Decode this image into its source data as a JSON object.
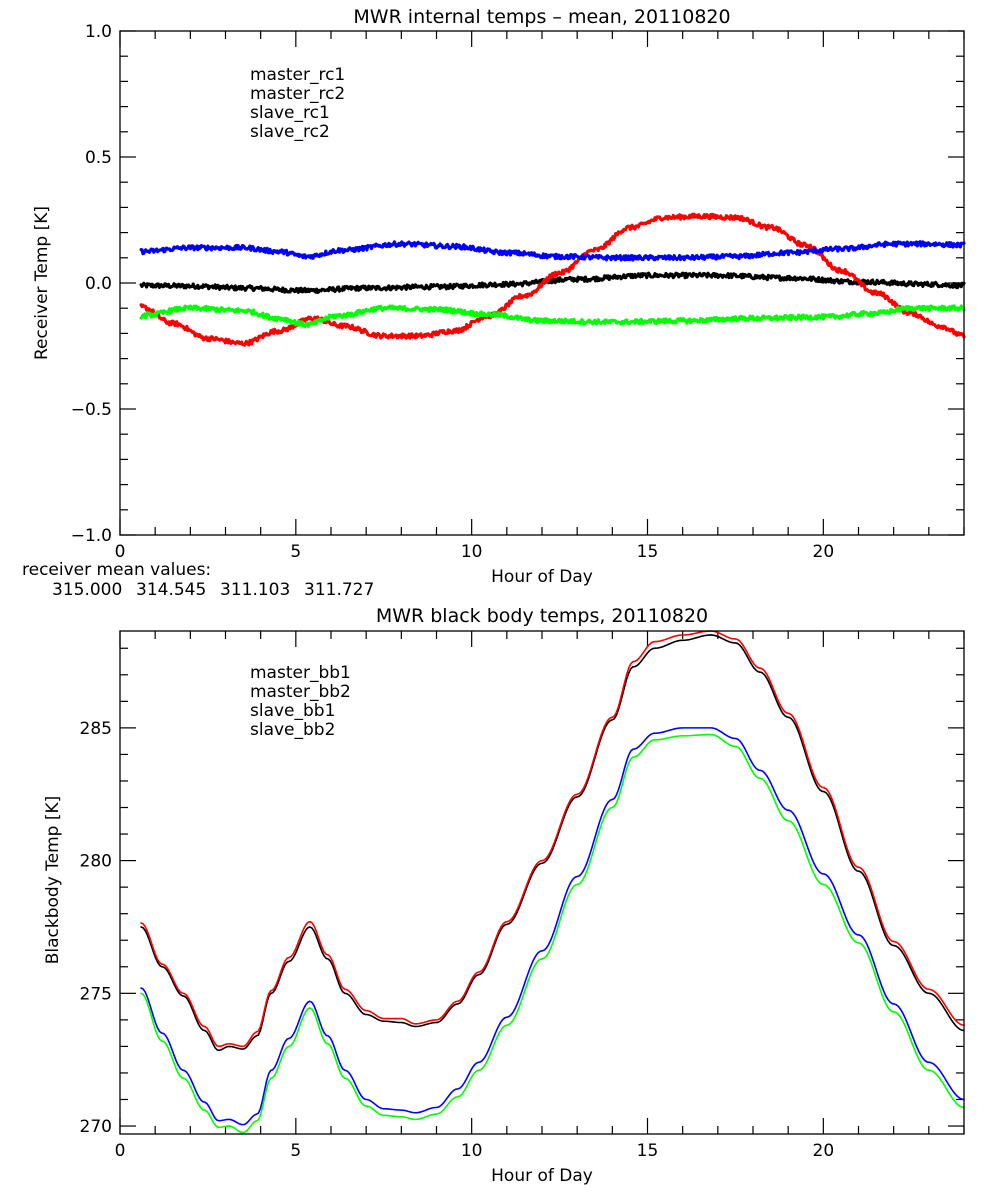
{
  "chart_data": [
    {
      "type": "line",
      "title": "MWR internal temps – mean, 20110820",
      "xlabel": "Hour of Day",
      "ylabel": "Receiver Temp [K]",
      "xlim": [
        0,
        24
      ],
      "ylim": [
        -1.0,
        1.0
      ],
      "xticks": [
        0,
        5,
        10,
        15,
        20
      ],
      "xtick_labels": [
        "0",
        "5",
        "10",
        "15",
        "20"
      ],
      "x_minor_step": 1,
      "yticks": [
        -1.0,
        -0.5,
        0.0,
        0.5,
        1.0
      ],
      "ytick_labels": [
        "−1.0",
        "−0.5",
        "0.0",
        "0.5",
        "1.0"
      ],
      "y_minor_step": 0.1,
      "grid": false,
      "legend_position": "top-left",
      "noisy": true,
      "series": [
        {
          "name": "master_rc1",
          "color": "#000000",
          "x": [
            0.6,
            2,
            3.5,
            5.3,
            7,
            9,
            11,
            13,
            15,
            17,
            19,
            21,
            23,
            24
          ],
          "y": [
            -0.01,
            -0.012,
            -0.02,
            -0.03,
            -0.02,
            -0.015,
            -0.005,
            0.015,
            0.03,
            0.03,
            0.02,
            0.005,
            -0.005,
            -0.01
          ]
        },
        {
          "name": "master_rc2",
          "color": "#ff0000",
          "x": [
            0.6,
            1.5,
            2.5,
            3.5,
            4.5,
            5.5,
            6.3,
            7.5,
            8.5,
            9.5,
            10.5,
            11.5,
            12.5,
            13.5,
            14.5,
            15.5,
            16.5,
            17.5,
            18.5,
            19.5,
            20.5,
            21.5,
            22.5,
            23.3,
            24
          ],
          "y": [
            -0.095,
            -0.16,
            -0.22,
            -0.24,
            -0.19,
            -0.14,
            -0.17,
            -0.21,
            -0.21,
            -0.19,
            -0.13,
            -0.05,
            0.04,
            0.13,
            0.22,
            0.26,
            0.265,
            0.26,
            0.22,
            0.15,
            0.05,
            -0.04,
            -0.12,
            -0.17,
            -0.21
          ]
        },
        {
          "name": "slave_rc1",
          "color": "#0000ff",
          "x": [
            0.6,
            2,
            3.5,
            4.5,
            5.3,
            6.3,
            8,
            9.5,
            11,
            12.5,
            14,
            16,
            17.5,
            19,
            20.5,
            22,
            23,
            24
          ],
          "y": [
            0.125,
            0.14,
            0.14,
            0.125,
            0.105,
            0.13,
            0.155,
            0.145,
            0.12,
            0.105,
            0.1,
            0.1,
            0.105,
            0.12,
            0.135,
            0.155,
            0.155,
            0.15
          ]
        },
        {
          "name": "slave_rc2",
          "color": "#00ff00",
          "x": [
            0.6,
            2,
            3.5,
            4.5,
            5.3,
            6.2,
            7.5,
            9,
            10.5,
            12,
            14,
            16,
            18,
            20,
            21.5,
            22.5,
            24
          ],
          "y": [
            -0.13,
            -0.1,
            -0.11,
            -0.14,
            -0.165,
            -0.13,
            -0.1,
            -0.105,
            -0.125,
            -0.15,
            -0.155,
            -0.15,
            -0.14,
            -0.135,
            -0.12,
            -0.1,
            -0.1
          ]
        }
      ]
    },
    {
      "type": "line",
      "title": "MWR black body temps, 20110820",
      "xlabel": "Hour of Day",
      "ylabel": "Blackbody Temp [K]",
      "xlim": [
        0,
        24
      ],
      "ylim": [
        269.7,
        288.65
      ],
      "xticks": [
        0,
        5,
        10,
        15,
        20
      ],
      "xtick_labels": [
        "0",
        "5",
        "10",
        "15",
        "20"
      ],
      "x_minor_step": 1,
      "yticks": [
        270,
        275,
        280,
        285
      ],
      "ytick_labels": [
        "270",
        "275",
        "280",
        "285"
      ],
      "y_minor_step": 1,
      "grid": false,
      "legend_position": "top-left",
      "series": [
        {
          "name": "master_bb1",
          "color": "#000000",
          "x": [
            0.6,
            1.2,
            1.8,
            2.4,
            2.8,
            3.1,
            3.5,
            3.9,
            4.3,
            4.8,
            5.4,
            5.9,
            6.4,
            7.0,
            7.5,
            8.0,
            8.4,
            9.0,
            9.6,
            10.2,
            11.0,
            12.0,
            13.0,
            14.0,
            14.6,
            15.2,
            16.0,
            16.8,
            17.5,
            18.2,
            19.0,
            20.0,
            21.0,
            22.0,
            23.0,
            24.0
          ],
          "y": [
            277.5,
            276.0,
            274.9,
            273.6,
            272.85,
            273.0,
            272.9,
            273.4,
            275.0,
            276.2,
            277.5,
            276.3,
            275.0,
            274.2,
            273.95,
            273.9,
            273.75,
            273.9,
            274.6,
            275.7,
            277.6,
            279.9,
            282.4,
            285.3,
            287.3,
            288.0,
            288.3,
            288.5,
            288.2,
            287.1,
            285.4,
            282.6,
            279.6,
            276.8,
            275.0,
            273.6
          ]
        },
        {
          "name": "master_bb2",
          "color": "#ff0000",
          "x": [
            0.6,
            1.2,
            1.8,
            2.4,
            2.8,
            3.1,
            3.5,
            3.9,
            4.3,
            4.8,
            5.4,
            5.9,
            6.4,
            7.0,
            7.5,
            8.0,
            8.4,
            9.0,
            9.6,
            10.2,
            11.0,
            12.0,
            13.0,
            14.0,
            14.6,
            15.2,
            16.0,
            16.8,
            17.5,
            18.2,
            19.0,
            20.0,
            21.0,
            22.0,
            23.0,
            24.0
          ],
          "y": [
            277.65,
            276.1,
            275.0,
            273.75,
            273.0,
            273.1,
            273.0,
            273.55,
            275.1,
            276.35,
            277.7,
            276.45,
            275.15,
            274.35,
            274.05,
            274.05,
            273.85,
            274.0,
            274.7,
            275.8,
            277.7,
            280.0,
            282.5,
            285.4,
            287.5,
            288.25,
            288.5,
            288.65,
            288.35,
            287.25,
            285.55,
            282.75,
            279.75,
            276.95,
            275.15,
            273.8
          ]
        },
        {
          "name": "slave_bb1",
          "color": "#0000ff",
          "x": [
            0.6,
            1.2,
            1.8,
            2.4,
            2.8,
            3.1,
            3.5,
            3.9,
            4.3,
            4.8,
            5.4,
            5.9,
            6.4,
            7.0,
            7.5,
            8.0,
            8.4,
            9.0,
            9.6,
            10.2,
            11.0,
            12.0,
            13.0,
            14.0,
            14.6,
            15.2,
            16.0,
            16.8,
            17.5,
            18.2,
            19.0,
            20.0,
            21.0,
            22.0,
            23.0,
            24.0
          ],
          "y": [
            275.2,
            273.5,
            272.1,
            270.9,
            270.2,
            270.25,
            270.05,
            270.45,
            272.1,
            273.3,
            274.7,
            273.4,
            272.1,
            271.0,
            270.65,
            270.6,
            270.5,
            270.7,
            271.4,
            272.4,
            274.1,
            276.6,
            279.4,
            282.3,
            284.2,
            284.8,
            285.0,
            285.0,
            284.6,
            283.4,
            281.9,
            279.5,
            277.2,
            274.6,
            272.4,
            271.0
          ]
        },
        {
          "name": "slave_bb2",
          "color": "#00ff00",
          "x": [
            0.6,
            1.2,
            1.8,
            2.4,
            2.8,
            3.1,
            3.5,
            3.9,
            4.3,
            4.8,
            5.4,
            5.9,
            6.4,
            7.0,
            7.5,
            8.0,
            8.4,
            9.0,
            9.6,
            10.2,
            11.0,
            12.0,
            13.0,
            14.0,
            14.6,
            15.2,
            16.0,
            16.8,
            17.5,
            18.2,
            19.0,
            20.0,
            21.0,
            22.0,
            23.0,
            24.0
          ],
          "y": [
            275.0,
            273.2,
            271.8,
            270.6,
            269.95,
            270.0,
            269.75,
            270.2,
            271.8,
            273.0,
            274.45,
            273.1,
            271.8,
            270.75,
            270.4,
            270.35,
            270.25,
            270.45,
            271.1,
            272.1,
            273.8,
            276.3,
            279.1,
            282.0,
            283.9,
            284.55,
            284.7,
            284.75,
            284.3,
            283.1,
            281.5,
            279.1,
            276.9,
            274.3,
            272.1,
            270.7
          ]
        }
      ]
    }
  ],
  "receiver_means": {
    "label": "receiver mean values:",
    "values": [
      {
        "text": "315.000",
        "color": "#000000"
      },
      {
        "text": "314.545",
        "color": "#ff0000"
      },
      {
        "text": "311.103",
        "color": "#0000ff"
      },
      {
        "text": "311.727",
        "color": "#00ff00"
      }
    ]
  }
}
